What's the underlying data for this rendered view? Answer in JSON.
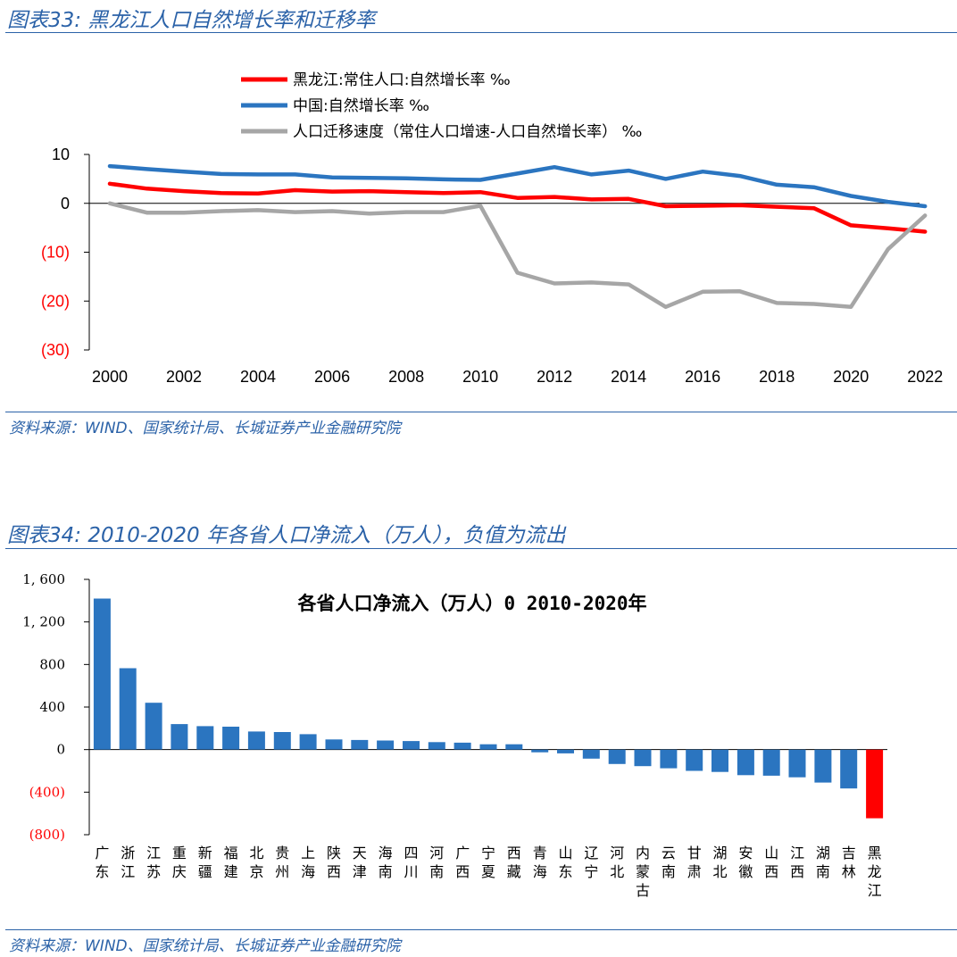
{
  "fig33": {
    "title": "图表33:  黑龙江人口自然增长率和迁移率",
    "source": "资料来源：WIND、国家统计局、长城证券产业金融研究院"
  },
  "fig34": {
    "title": "图表34:  2010-2020 年各省人口净流入（万人），负值为流出",
    "source": "资料来源：WIND、国家统计局、长城证券产业金融研究院"
  },
  "colors": {
    "red": "#ff0000",
    "blue": "#2b75c0",
    "gray": "#a6a6a6",
    "header": "#2b62a8"
  },
  "chart_data": [
    {
      "type": "line",
      "x": [
        2000,
        2001,
        2002,
        2003,
        2004,
        2005,
        2006,
        2007,
        2008,
        2009,
        2010,
        2011,
        2012,
        2013,
        2014,
        2015,
        2016,
        2017,
        2018,
        2019,
        2020,
        2021,
        2022
      ],
      "xticks": [
        2000,
        2002,
        2004,
        2006,
        2008,
        2010,
        2012,
        2014,
        2016,
        2018,
        2020,
        2022
      ],
      "xlim": [
        2000,
        2022.5
      ],
      "ylim": [
        -30,
        10
      ],
      "yticks": [
        10,
        0,
        -10,
        -20,
        -30
      ],
      "ytick_labels": [
        "10",
        "0",
        "(10)",
        "(20)",
        "(30)"
      ],
      "legend_position": "top",
      "series": [
        {
          "name": "黑龙江:常住人口:自然增长率 ‰",
          "color": "#ff0000",
          "values": [
            4.0,
            3.0,
            2.5,
            2.1,
            2.0,
            2.7,
            2.4,
            2.5,
            2.3,
            2.1,
            2.3,
            1.1,
            1.3,
            0.8,
            0.9,
            -0.6,
            -0.5,
            -0.4,
            -0.7,
            -1.0,
            -4.5,
            -5.1,
            -5.8
          ]
        },
        {
          "name": "中国:自然增长率 ‰",
          "color": "#2b75c0",
          "values": [
            7.6,
            7.0,
            6.5,
            6.0,
            5.9,
            5.9,
            5.3,
            5.2,
            5.1,
            4.9,
            4.8,
            6.1,
            7.4,
            5.9,
            6.7,
            5.0,
            6.5,
            5.6,
            3.8,
            3.3,
            1.5,
            0.3,
            -0.6
          ]
        },
        {
          "name": "人口迁移速度（常住人口增速-人口自然增长率） ‰",
          "color": "#a6a6a6",
          "values": [
            0.0,
            -1.9,
            -1.9,
            -1.6,
            -1.4,
            -1.8,
            -1.6,
            -2.1,
            -1.8,
            -1.8,
            -0.5,
            -14.2,
            -16.4,
            -16.2,
            -16.6,
            -21.2,
            -18.1,
            -18.0,
            -20.4,
            -20.6,
            -21.2,
            -9.4,
            -2.5
          ]
        }
      ]
    },
    {
      "type": "bar",
      "title": "各省人口净流入（万人）0 2010-2020年",
      "categories": [
        "广东",
        "浙江",
        "江苏",
        "重庆",
        "新疆",
        "福建",
        "北京",
        "贵州",
        "上海",
        "陕西",
        "天津",
        "海南",
        "四川",
        "河南",
        "广西",
        "宁夏",
        "西藏",
        "青海",
        "山东",
        "辽宁",
        "河北",
        "内蒙古",
        "云南",
        "甘肃",
        "湖北",
        "安徽",
        "山西",
        "江西",
        "湖南",
        "吉林",
        "黑龙江"
      ],
      "values": [
        1420,
        765,
        440,
        240,
        220,
        215,
        170,
        165,
        145,
        95,
        90,
        85,
        80,
        70,
        65,
        50,
        50,
        -25,
        -35,
        -85,
        -135,
        -155,
        -175,
        -200,
        -210,
        -240,
        -245,
        -260,
        -310,
        -365,
        -645
      ],
      "highlight": "黑龙江",
      "ylim": [
        -800,
        1600
      ],
      "yticks": [
        1600,
        1200,
        800,
        400,
        0,
        -400,
        -800
      ],
      "ytick_labels": [
        "1, 600",
        "1, 200",
        "800",
        "400",
        "0",
        "(400)",
        "(800)"
      ]
    }
  ]
}
